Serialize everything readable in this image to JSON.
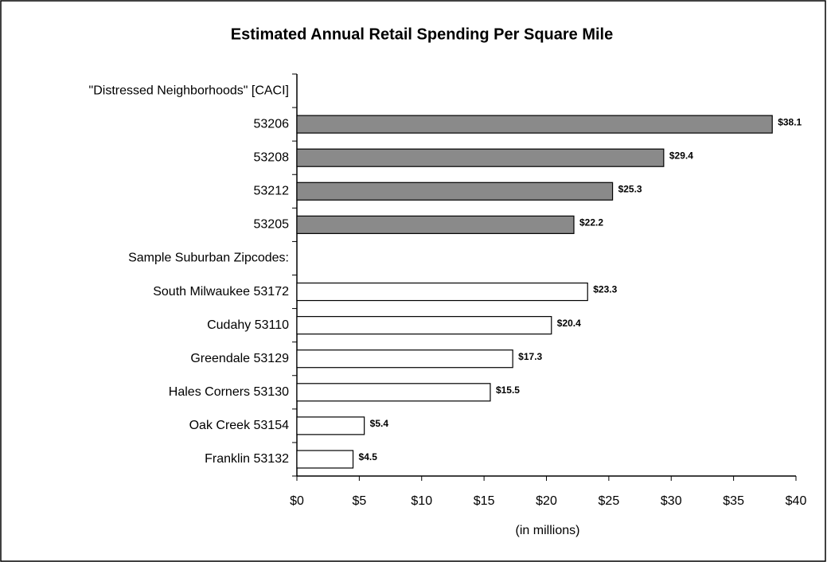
{
  "chart_data": {
    "type": "hbar",
    "title": "Estimated Annual Retail Spending Per Square Mile",
    "xlabel": "(in millions)",
    "categories": [
      "\"Distressed Neighborhoods\" [CACI]",
      "53206",
      "53208",
      "53212",
      "53205",
      "Sample Suburban Zipcodes:",
      "South Milwaukee 53172",
      "Cudahy 53110",
      "Greendale 53129",
      "Hales Corners 53130",
      "Oak Creek 53154",
      "Franklin 53132"
    ],
    "values": [
      null,
      38.1,
      29.4,
      25.3,
      22.2,
      null,
      23.3,
      20.4,
      17.3,
      15.5,
      5.4,
      4.5
    ],
    "value_labels": [
      null,
      "$38.1",
      "$29.4",
      "$25.3",
      "$22.2",
      null,
      "$23.3",
      "$20.4",
      "$17.3",
      "$15.5",
      "$5.4",
      "$4.5"
    ],
    "colors": [
      null,
      "#8a8a8a",
      "#8a8a8a",
      "#8a8a8a",
      "#8a8a8a",
      null,
      "#ffffff",
      "#ffffff",
      "#ffffff",
      "#ffffff",
      "#ffffff",
      "#ffffff"
    ],
    "xlim": [
      0,
      40
    ],
    "xticks": [
      {
        "value": 0,
        "label": "$0"
      },
      {
        "value": 5,
        "label": "$5"
      },
      {
        "value": 10,
        "label": "$10"
      },
      {
        "value": 15,
        "label": "$15"
      },
      {
        "value": 20,
        "label": "$20"
      },
      {
        "value": 25,
        "label": "$25"
      },
      {
        "value": 30,
        "label": "$30"
      },
      {
        "value": 35,
        "label": "$35"
      },
      {
        "value": 40,
        "label": "$40"
      }
    ]
  }
}
